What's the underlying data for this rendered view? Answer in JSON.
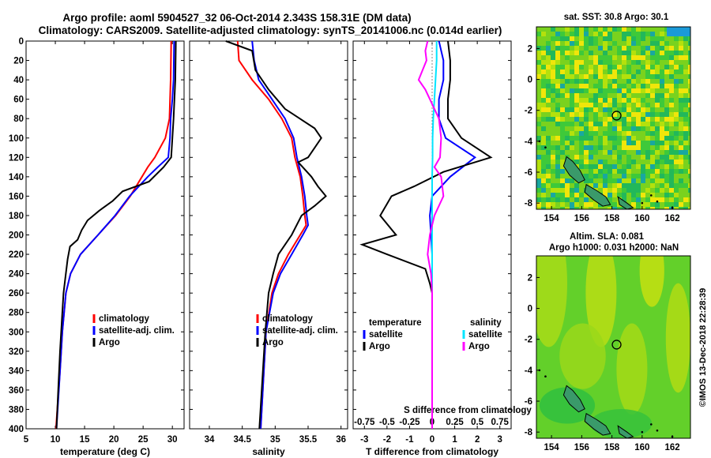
{
  "figure": {
    "title_line1": "Argo profile: aoml 5904527_32 06-Oct-2014 2.343S 158.31E (DM data)",
    "title_line2": "Climatology: CARS2009. Satellite-adjusted climatology: synTS_20141006.nc (0.014d earlier)",
    "credit": "©IMOS 13-Dec-2018 22:28:39",
    "colors": {
      "climatology": "#ff0000",
      "satellite": "#0000ff",
      "argo": "#000000",
      "sat_salinity": "#00e5ff",
      "argo_salinity": "#ff00ff"
    }
  },
  "chart_data": [
    {
      "type": "line",
      "id": "temperature",
      "xlabel": "temperature (deg C)",
      "ylabel": "",
      "xlim": [
        5,
        32
      ],
      "ylim": [
        400,
        0
      ],
      "xticks": [
        5,
        10,
        15,
        20,
        25,
        30
      ],
      "yticks": [
        0,
        20,
        40,
        60,
        80,
        100,
        120,
        140,
        160,
        180,
        200,
        220,
        240,
        260,
        280,
        300,
        320,
        340,
        360,
        380,
        400
      ],
      "legend": [
        "climatology",
        "satellite-adj. clim.",
        "Argo"
      ],
      "series": [
        {
          "name": "climatology",
          "color": "#ff0000",
          "depth": [
            0,
            40,
            80,
            100,
            120,
            130,
            140,
            160,
            180,
            200,
            220,
            240,
            260,
            300,
            340,
            400
          ],
          "values": [
            29.8,
            29.7,
            29.5,
            28.8,
            27.0,
            25.8,
            24.8,
            22.8,
            20.3,
            17.3,
            14.3,
            12.6,
            11.8,
            11.2,
            10.8,
            10.1
          ]
        },
        {
          "name": "satellite-adj. clim.",
          "color": "#0000ff",
          "depth": [
            0,
            40,
            60,
            80,
            100,
            120,
            130,
            140,
            160,
            180,
            200,
            220,
            240,
            260,
            300,
            340,
            400
          ],
          "values": [
            30.3,
            30.2,
            30.0,
            29.7,
            29.6,
            29.3,
            27.5,
            25.8,
            22.7,
            20.2,
            17.3,
            14.3,
            12.6,
            11.8,
            11.2,
            10.8,
            10.2
          ]
        },
        {
          "name": "Argo",
          "color": "#000000",
          "depth": [
            0,
            40,
            80,
            100,
            120,
            130,
            145,
            155,
            165,
            175,
            185,
            195,
            205,
            212,
            225,
            245,
            260,
            280,
            320,
            360,
            400
          ],
          "values": [
            30.6,
            30.5,
            30.2,
            30.0,
            29.8,
            28.5,
            26.0,
            21.5,
            19.8,
            17.5,
            15.5,
            14.5,
            13.8,
            12.5,
            12.1,
            11.7,
            11.4,
            11.2,
            10.8,
            10.5,
            10.2
          ]
        }
      ]
    },
    {
      "type": "line",
      "id": "salinity",
      "xlabel": "salinity",
      "ylabel": "",
      "xlim": [
        33.7,
        36.1
      ],
      "ylim": [
        400,
        0
      ],
      "xticks": [
        34,
        34.5,
        35,
        35.5,
        36
      ],
      "yticks": [
        0,
        20,
        40,
        60,
        80,
        100,
        120,
        140,
        160,
        180,
        200,
        220,
        240,
        260,
        280,
        300,
        320,
        340,
        360,
        380,
        400
      ],
      "legend": [
        "climatology",
        "satellite-adj. clim.",
        "Argo"
      ],
      "series": [
        {
          "name": "climatology",
          "color": "#ff0000",
          "depth": [
            0,
            20,
            40,
            60,
            80,
            100,
            120,
            140,
            160,
            180,
            190,
            200,
            220,
            240,
            260,
            300,
            400
          ],
          "values": [
            34.43,
            34.45,
            34.65,
            34.9,
            35.1,
            35.25,
            35.3,
            35.38,
            35.42,
            35.45,
            35.47,
            35.38,
            35.2,
            35.05,
            34.95,
            34.86,
            34.78
          ]
        },
        {
          "name": "satellite-adj. clim.",
          "color": "#0000ff",
          "depth": [
            0,
            20,
            40,
            60,
            80,
            100,
            120,
            140,
            160,
            180,
            190,
            200,
            220,
            240,
            260,
            300,
            400
          ],
          "values": [
            34.65,
            34.68,
            34.75,
            34.95,
            35.15,
            35.28,
            35.33,
            35.4,
            35.45,
            35.48,
            35.5,
            35.42,
            35.25,
            35.08,
            34.97,
            34.86,
            34.78
          ]
        },
        {
          "name": "Argo",
          "color": "#000000",
          "depth": [
            0,
            10,
            30,
            50,
            70,
            90,
            100,
            120,
            125,
            140,
            150,
            160,
            170,
            180,
            200,
            220,
            240,
            260,
            300,
            400
          ],
          "values": [
            34.25,
            34.65,
            34.7,
            34.9,
            35.15,
            35.6,
            35.7,
            35.5,
            35.35,
            35.55,
            35.65,
            35.77,
            35.6,
            35.4,
            35.25,
            35.05,
            34.97,
            34.9,
            34.85,
            34.76
          ]
        }
      ]
    },
    {
      "type": "line",
      "id": "difference",
      "xlabel": "T difference from climatology",
      "xlabel_top": "S difference from climatology",
      "xlim": [
        -3.5,
        3.5
      ],
      "ylim": [
        400,
        0
      ],
      "xticks": [
        -3,
        -2,
        -1,
        0,
        1,
        2,
        3
      ],
      "xticks_top": [
        "-0.75",
        "-0.5",
        "-0.25",
        "0",
        "0.25",
        "0.5",
        "0.75"
      ],
      "yticks": [
        0,
        20,
        40,
        60,
        80,
        100,
        120,
        140,
        160,
        180,
        200,
        220,
        240,
        260,
        280,
        300,
        320,
        340,
        360,
        380,
        400
      ],
      "legend_title_left": "temperature",
      "legend_title_right": "salinity",
      "legend": [
        "satellite",
        "Argo",
        "satellite",
        "Argo"
      ],
      "series": [
        {
          "name": "satellite",
          "kind": "T",
          "color": "#0000ff",
          "depth": [
            0,
            20,
            40,
            60,
            80,
            100,
            120,
            140,
            160,
            180,
            220,
            260,
            300,
            400
          ],
          "values": [
            0.3,
            0.5,
            0.5,
            0.3,
            0.3,
            0.6,
            1.9,
            0.8,
            0.0,
            -0.1,
            0.0,
            0.0,
            0.0,
            0.0
          ]
        },
        {
          "name": "Argo",
          "kind": "T",
          "color": "#000000",
          "depth": [
            0,
            20,
            40,
            60,
            80,
            100,
            120,
            135,
            150,
            160,
            180,
            200,
            210,
            220,
            235,
            250,
            260,
            300,
            400
          ],
          "values": [
            0.7,
            0.8,
            0.8,
            0.7,
            0.7,
            1.3,
            2.6,
            0.5,
            -0.8,
            -1.8,
            -2.3,
            -1.6,
            -3.1,
            -2.0,
            -0.3,
            -0.1,
            0.0,
            0.0,
            0.0
          ]
        },
        {
          "name": "satellite",
          "kind": "S",
          "color": "#00e5ff",
          "depth": [
            0,
            20,
            40,
            60,
            80,
            100,
            120,
            140,
            160,
            180,
            220,
            260,
            300,
            400
          ],
          "values": [
            0.2,
            0.2,
            0.15,
            0.1,
            0.05,
            0.02,
            0.02,
            0.0,
            0.0,
            0.0,
            0.0,
            0.0,
            0.0,
            0.0
          ]
        },
        {
          "name": "Argo",
          "kind": "S",
          "color": "#ff00ff",
          "depth": [
            0,
            10,
            20,
            40,
            50,
            60,
            80,
            100,
            120,
            130,
            140,
            160,
            180,
            200,
            220,
            240,
            260,
            300,
            400
          ],
          "values": [
            -0.2,
            -0.3,
            -0.25,
            -0.6,
            -0.3,
            -0.1,
            0.3,
            0.4,
            0.35,
            0.1,
            0.4,
            0.5,
            0.1,
            -0.1,
            -0.2,
            -0.05,
            0.0,
            0.0,
            0.0
          ]
        }
      ]
    },
    {
      "type": "heatmap",
      "id": "sst_map",
      "title": "sat. SST: 30.8  Argo: 30.1",
      "xlim": [
        153,
        163.2
      ],
      "ylim": [
        -8.4,
        3.4
      ],
      "xticks": [
        154,
        156,
        158,
        160,
        162
      ],
      "yticks": [
        2,
        0,
        -2,
        -4,
        -6,
        -8
      ],
      "marker": {
        "lon": 158.31,
        "lat": -2.343
      }
    },
    {
      "type": "heatmap",
      "id": "sla_map",
      "title": "Altim. SLA: 0.081",
      "title_line2": "Argo h1000: 0.031 h2000: NaN",
      "xlim": [
        153,
        163.2
      ],
      "ylim": [
        -8.4,
        3.4
      ],
      "xticks": [
        154,
        156,
        158,
        160,
        162
      ],
      "yticks": [
        2,
        0,
        -2,
        -4,
        -6,
        -8
      ],
      "marker": {
        "lon": 158.31,
        "lat": -2.343
      }
    }
  ]
}
